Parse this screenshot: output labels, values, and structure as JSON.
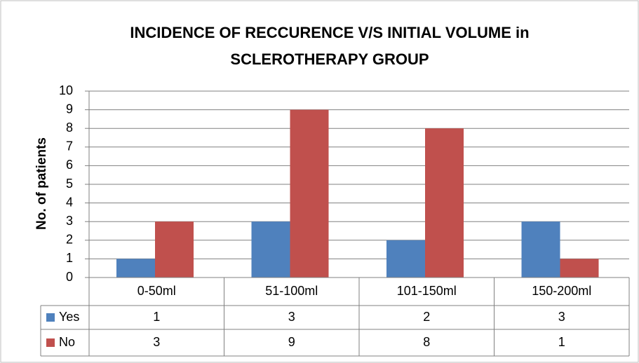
{
  "chart_data": {
    "type": "bar",
    "title": "INCIDENCE OF RECCURENCE V/S INITIAL VOLUME in SCLEROTHERAPY GROUP",
    "y_label": "No. of patients",
    "categories": [
      "0-50ml",
      "51-100ml",
      "101-150ml",
      "150-200ml"
    ],
    "series": [
      {
        "name": "Yes",
        "color": "#4f81bd",
        "values": [
          1,
          3,
          2,
          3
        ]
      },
      {
        "name": "No",
        "color": "#c0504d",
        "values": [
          3,
          9,
          8,
          1
        ]
      }
    ],
    "ylim": [
      0,
      10
    ],
    "yticks": [
      0,
      1,
      2,
      3,
      4,
      5,
      6,
      7,
      8,
      9,
      10
    ],
    "grid": true,
    "data_table": true
  }
}
